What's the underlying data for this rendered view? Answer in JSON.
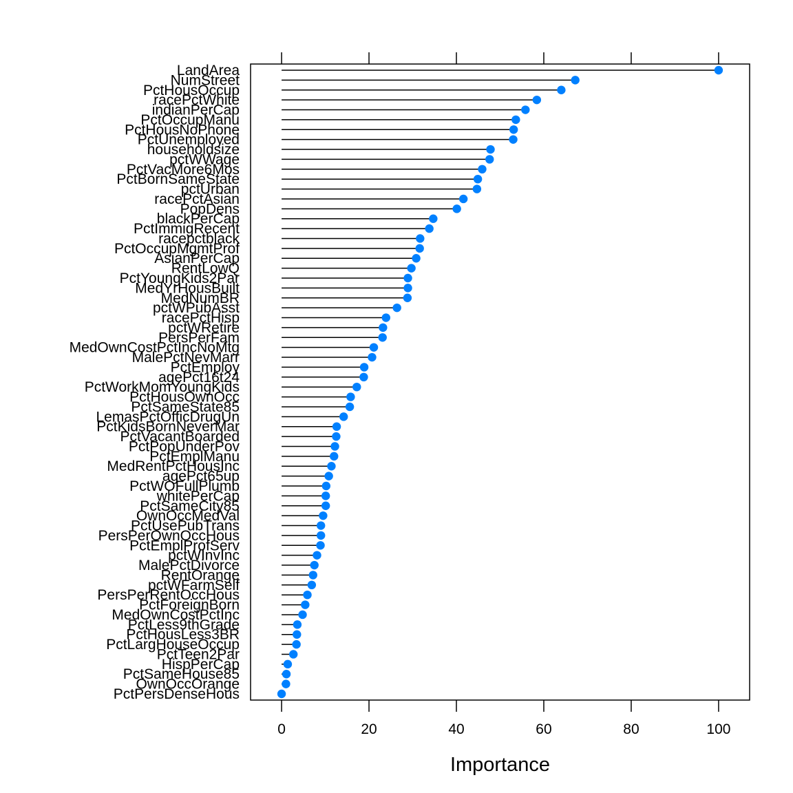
{
  "chart_data": {
    "type": "dot",
    "title": "",
    "xlabel": "Importance",
    "ylabel": "",
    "xlim": [
      -7.1,
      107.1
    ],
    "xticks": [
      0,
      20,
      40,
      60,
      80,
      100
    ],
    "xtick_labels": [
      "0",
      "20",
      "40",
      "60",
      "80",
      "100"
    ],
    "grid": false,
    "legend": "none",
    "marker_color": "#0080ff",
    "line_color": "#000000",
    "categories": [
      "LandArea",
      "NumStreet",
      "PctHousOccup",
      "racePctWhite",
      "indianPerCap",
      "PctOccupManu",
      "PctHousNoPhone",
      "PctUnemployed",
      "householdsize",
      "pctWWage",
      "PctVacMore6Mos",
      "PctBornSameState",
      "pctUrban",
      "racePctAsian",
      "PopDens",
      "blackPerCap",
      "PctImmigRecent",
      "racepctblack",
      "PctOccupMgmtProf",
      "AsianPerCap",
      "RentLowQ",
      "PctYoungKids2Par",
      "MedYrHousBuilt",
      "MedNumBR",
      "pctWPubAsst",
      "racePctHisp",
      "pctWRetire",
      "PersPerFam",
      "MedOwnCostPctIncNoMtg",
      "MalePctNevMarr",
      "PctEmploy",
      "agePct16t24",
      "PctWorkMomYoungKids",
      "PctHousOwnOcc",
      "PctSameState85",
      "LemasPctOfficDrugUn",
      "PctKidsBornNeverMar",
      "PctVacantBoarded",
      "PctPopUnderPov",
      "PctEmplManu",
      "MedRentPctHousInc",
      "agePct65up",
      "PctWOFullPlumb",
      "whitePerCap",
      "PctSameCity85",
      "OwnOccMedVal",
      "PctUsePubTrans",
      "PersPerOwnOccHous",
      "PctEmplProfServ",
      "pctWInvInc",
      "MalePctDivorce",
      "RentOrange",
      "pctWFarmSelf",
      "PersPerRentOccHous",
      "PctForeignBorn",
      "MedOwnCostPctInc",
      "PctLess9thGrade",
      "PctHousLess3BR",
      "PctLargHouseOccup",
      "PctTeen2Par",
      "HispPerCap",
      "PctSameHouse85",
      "OwnOccOrange",
      "PctPersDenseHous"
    ],
    "values": [
      100,
      67.2,
      64.0,
      58.4,
      55.8,
      53.6,
      53.1,
      53.0,
      47.8,
      47.6,
      45.9,
      44.9,
      44.7,
      41.6,
      40.1,
      34.7,
      33.8,
      31.7,
      31.6,
      30.8,
      29.7,
      28.9,
      28.9,
      28.8,
      26.4,
      23.9,
      23.2,
      23.1,
      21.1,
      20.7,
      18.9,
      18.8,
      17.2,
      15.8,
      15.6,
      14.2,
      12.6,
      12.5,
      12.2,
      12.0,
      11.4,
      10.8,
      10.2,
      10.1,
      10.1,
      9.5,
      9.0,
      9.0,
      8.9,
      8.1,
      7.5,
      7.2,
      6.9,
      5.9,
      5.4,
      4.8,
      3.6,
      3.5,
      3.4,
      2.7,
      1.4,
      1.1,
      1.0,
      0.0
    ]
  }
}
